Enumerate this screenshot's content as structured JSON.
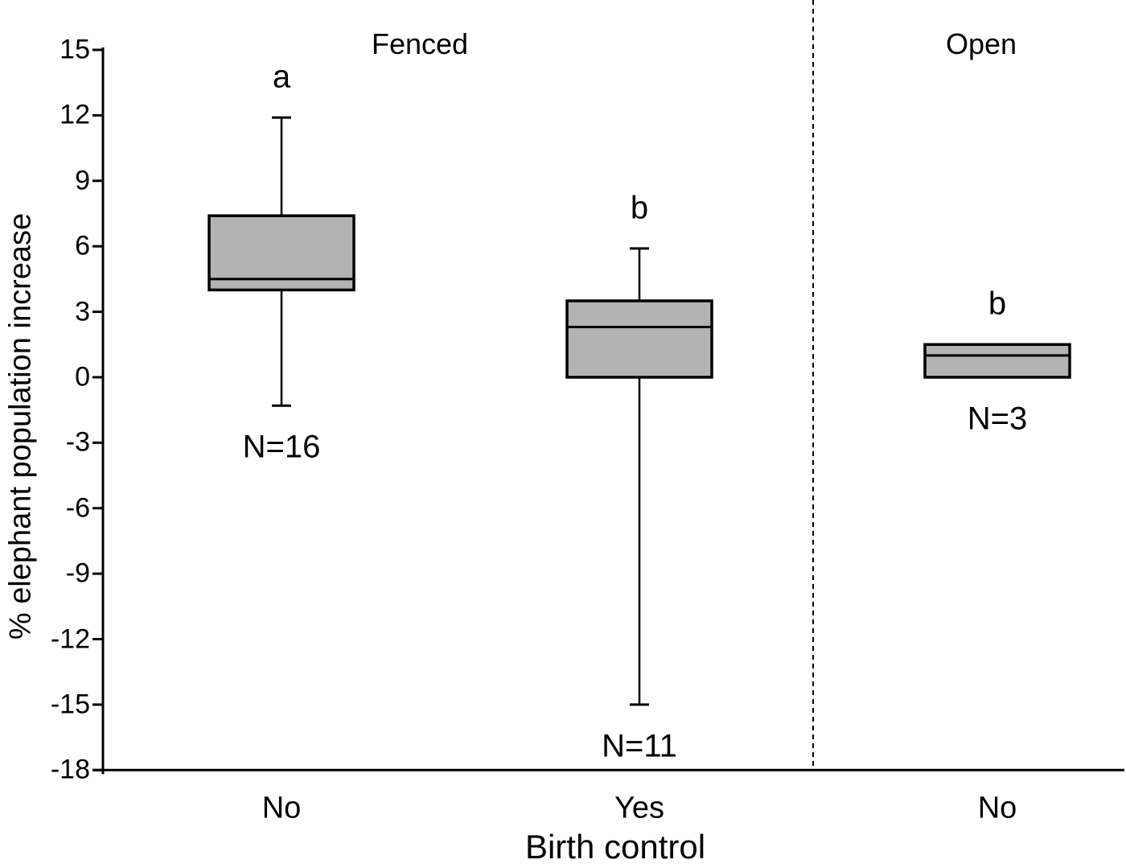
{
  "chart_data": {
    "type": "boxplot",
    "title": "",
    "xlabel": "Birth control",
    "ylabel": "% elephant population increase",
    "ylim": [
      -18,
      15
    ],
    "y_ticks": [
      15,
      12,
      9,
      6,
      3,
      0,
      -3,
      -6,
      -9,
      -12,
      -15,
      -18
    ],
    "legend": "none",
    "grid": false,
    "panel_divider": "dashed vertical line separating Fenced and Open panels",
    "groups": [
      {
        "label": "Fenced"
      },
      {
        "label": "Open"
      }
    ],
    "boxes": [
      {
        "group": "Fenced",
        "category": "No",
        "sig_letter": "a",
        "n_label": "N=16",
        "whisker_high": 11.9,
        "q3": 7.4,
        "median": 4.5,
        "q1": 4.0,
        "whisker_low": -1.3
      },
      {
        "group": "Fenced",
        "category": "Yes",
        "sig_letter": "b",
        "n_label": "N=11",
        "whisker_high": 5.9,
        "q3": 3.5,
        "median": 2.3,
        "q1": 0.0,
        "whisker_low": -15.0
      },
      {
        "group": "Open",
        "category": "No",
        "sig_letter": "b",
        "n_label": "N=3",
        "whisker_high": null,
        "q3": 1.5,
        "median": 1.0,
        "q1": 0.0,
        "whisker_low": null
      }
    ],
    "colors": {
      "box_fill": "#b3b3b3",
      "line": "#000000",
      "background": "#ffffff"
    }
  }
}
